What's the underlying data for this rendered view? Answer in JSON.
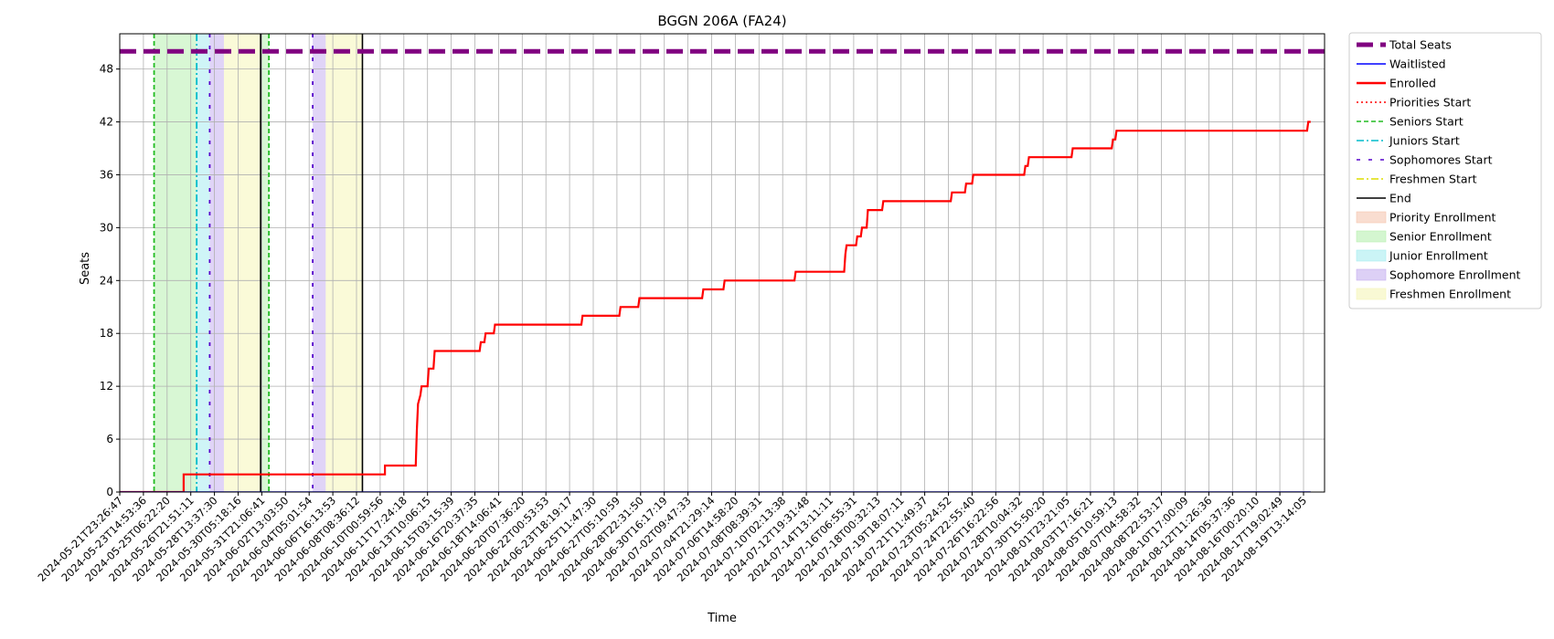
{
  "chart_data": {
    "type": "line",
    "title": "BGGN 206A (FA24)",
    "xlabel": "Time",
    "ylabel": "Seats",
    "ylim": [
      0,
      52
    ],
    "yticks": [
      0,
      6,
      12,
      18,
      24,
      30,
      36,
      42,
      48
    ],
    "grid": true,
    "legend_placement": "outside-right-top",
    "xticks": [
      "2024-05-21T23:26:47",
      "2024-05-23T14:53:36",
      "2024-05-25T06:22:20",
      "2024-05-26T21:51:11",
      "2024-05-28T13:37:30",
      "2024-05-30T05:18:16",
      "2024-05-31T21:06:41",
      "2024-06-02T13:03:50",
      "2024-06-04T05:01:54",
      "2024-06-06T16:13:53",
      "2024-06-08T08:36:12",
      "2024-06-10T00:59:56",
      "2024-06-11T17:24:18",
      "2024-06-13T10:06:15",
      "2024-06-15T03:15:39",
      "2024-06-16T20:37:35",
      "2024-06-18T14:06:41",
      "2024-06-20T07:36:20",
      "2024-06-22T00:53:53",
      "2024-06-23T18:19:17",
      "2024-06-25T11:47:30",
      "2024-06-27T05:10:59",
      "2024-06-28T22:31:50",
      "2024-06-30T16:17:19",
      "2024-07-02T09:47:33",
      "2024-07-04T21:29:14",
      "2024-07-06T14:58:20",
      "2024-07-08T08:39:31",
      "2024-07-10T02:13:38",
      "2024-07-12T19:31:48",
      "2024-07-14T13:11:11",
      "2024-07-16T06:55:31",
      "2024-07-18T00:32:13",
      "2024-07-19T18:07:11",
      "2024-07-21T11:49:37",
      "2024-07-23T05:24:52",
      "2024-07-24T22:55:40",
      "2024-07-26T16:22:56",
      "2024-07-28T10:04:32",
      "2024-07-30T15:50:20",
      "2024-08-01T23:21:05",
      "2024-08-03T17:16:21",
      "2024-08-05T10:59:13",
      "2024-08-07T04:58:32",
      "2024-08-08T22:53:17",
      "2024-08-10T17:00:09",
      "2024-08-12T11:26:36",
      "2024-08-14T05:37:36",
      "2024-08-16T00:20:10",
      "2024-08-17T19:02:49",
      "2024-08-19T13:14:05"
    ],
    "x_index_range": [
      0,
      50.3
    ],
    "total_seats": 50,
    "series": [
      {
        "name": "Enrolled",
        "color": "#ff0000",
        "points": [
          [
            0,
            0
          ],
          [
            2.7,
            0
          ],
          [
            2.7,
            2
          ],
          [
            11.2,
            2
          ],
          [
            11.2,
            3
          ],
          [
            12.5,
            3
          ],
          [
            12.55,
            7
          ],
          [
            12.6,
            10
          ],
          [
            12.7,
            11
          ],
          [
            12.75,
            12
          ],
          [
            13.0,
            12
          ],
          [
            13.05,
            14
          ],
          [
            13.25,
            14
          ],
          [
            13.3,
            16
          ],
          [
            15.2,
            16
          ],
          [
            15.25,
            17
          ],
          [
            15.4,
            17
          ],
          [
            15.45,
            18
          ],
          [
            15.8,
            18
          ],
          [
            15.85,
            19
          ],
          [
            19.5,
            19
          ],
          [
            19.55,
            20
          ],
          [
            21.1,
            20
          ],
          [
            21.15,
            21
          ],
          [
            21.9,
            21
          ],
          [
            21.95,
            22
          ],
          [
            24.6,
            22
          ],
          [
            24.65,
            23
          ],
          [
            25.5,
            23
          ],
          [
            25.55,
            24
          ],
          [
            28.5,
            24
          ],
          [
            28.55,
            25
          ],
          [
            30.6,
            25
          ],
          [
            30.65,
            27
          ],
          [
            30.7,
            28
          ],
          [
            31.1,
            28
          ],
          [
            31.15,
            29
          ],
          [
            31.3,
            29
          ],
          [
            31.35,
            30
          ],
          [
            31.55,
            30
          ],
          [
            31.6,
            32
          ],
          [
            32.2,
            32
          ],
          [
            32.25,
            33
          ],
          [
            35.1,
            33
          ],
          [
            35.15,
            34
          ],
          [
            35.7,
            34
          ],
          [
            35.75,
            35
          ],
          [
            36.0,
            35
          ],
          [
            36.05,
            36
          ],
          [
            38.2,
            36
          ],
          [
            38.25,
            37
          ],
          [
            38.35,
            37
          ],
          [
            38.4,
            38
          ],
          [
            40.2,
            38
          ],
          [
            40.25,
            39
          ],
          [
            41.9,
            39
          ],
          [
            41.95,
            40
          ],
          [
            42.05,
            40
          ],
          [
            42.1,
            41
          ],
          [
            50.15,
            41
          ],
          [
            50.2,
            42
          ],
          [
            50.3,
            42
          ]
        ]
      },
      {
        "name": "Waitlisted",
        "color": "#0000ff",
        "points": [
          [
            0,
            0
          ],
          [
            50.3,
            0
          ]
        ]
      }
    ],
    "markers": [
      {
        "kind": "Seniors Start",
        "x": 1.45
      },
      {
        "kind": "Seniors Start",
        "x": 6.3
      },
      {
        "kind": "Juniors Start",
        "x": 3.25
      },
      {
        "kind": "Sophomores Start",
        "x": 3.8
      },
      {
        "kind": "Sophomores Start",
        "x": 8.15
      },
      {
        "kind": "End",
        "x": 5.95
      },
      {
        "kind": "End",
        "x": 10.25
      }
    ],
    "regions": [
      {
        "kind": "Senior Enrollment",
        "x0": 1.45,
        "x1": 3.25
      },
      {
        "kind": "Junior Enrollment",
        "x0": 3.25,
        "x1": 3.8
      },
      {
        "kind": "Sophomore Enrollment",
        "x0": 3.8,
        "x1": 4.4
      },
      {
        "kind": "Freshmen Enrollment",
        "x0": 4.4,
        "x1": 5.95
      },
      {
        "kind": "Senior Enrollment",
        "x0": 5.95,
        "x1": 6.3
      },
      {
        "kind": "Sophomore Enrollment",
        "x0": 8.15,
        "x1": 8.7
      },
      {
        "kind": "Freshmen Enrollment",
        "x0": 8.7,
        "x1": 10.25
      }
    ],
    "legend": [
      {
        "label": "Total Seats",
        "style": "thick-dash",
        "color": "#800080"
      },
      {
        "label": "Waitlisted",
        "style": "line",
        "color": "#0000ff"
      },
      {
        "label": "Enrolled",
        "style": "thick-line",
        "color": "#ff0000"
      },
      {
        "label": "Priorities Start",
        "style": "dotted",
        "color": "#ff0000"
      },
      {
        "label": "Seniors Start",
        "style": "dashed",
        "color": "#22bb22"
      },
      {
        "label": "Juniors Start",
        "style": "dashdot",
        "color": "#00bbcc"
      },
      {
        "label": "Sophomores Start",
        "style": "loose-dash",
        "color": "#5500cc"
      },
      {
        "label": "Freshmen Start",
        "style": "dashdot",
        "color": "#dddd00"
      },
      {
        "label": "End",
        "style": "line",
        "color": "#000000"
      },
      {
        "label": "Priority Enrollment",
        "style": "patch",
        "color": "#f5c6b0"
      },
      {
        "label": "Senior Enrollment",
        "style": "patch",
        "color": "#b8f0b0"
      },
      {
        "label": "Junior Enrollment",
        "style": "patch",
        "color": "#a8ecf0"
      },
      {
        "label": "Sophomore Enrollment",
        "style": "patch",
        "color": "#c6b0f0"
      },
      {
        "label": "Freshmen Enrollment",
        "style": "patch",
        "color": "#f5f5b8"
      }
    ]
  }
}
